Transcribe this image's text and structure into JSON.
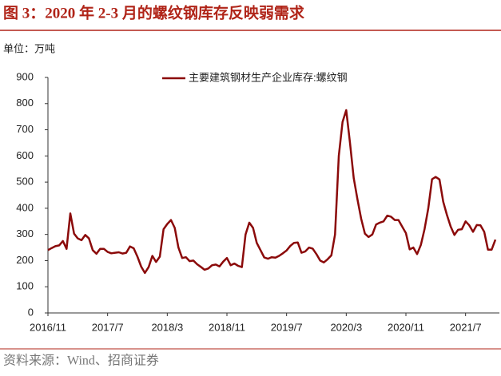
{
  "chart_data": {
    "type": "line",
    "title": "图 3：2020 年 2-3 月的螺纹钢库存反映弱需求",
    "unit": "单位：万吨",
    "source": "资料来源：Wind、招商证券",
    "categories": [
      "2016/11",
      null,
      null,
      null,
      null,
      null,
      null,
      null,
      null,
      null,
      null,
      null,
      null,
      null,
      null,
      null,
      "2017/7",
      null,
      null,
      null,
      null,
      null,
      null,
      null,
      null,
      null,
      null,
      null,
      null,
      null,
      null,
      null,
      "2018/3",
      null,
      null,
      null,
      null,
      null,
      null,
      null,
      null,
      null,
      null,
      null,
      null,
      null,
      null,
      null,
      "2018/11",
      null,
      null,
      null,
      null,
      null,
      null,
      null,
      null,
      null,
      null,
      null,
      null,
      null,
      null,
      null,
      "2019/7",
      null,
      null,
      null,
      null,
      null,
      null,
      null,
      null,
      null,
      null,
      null,
      null,
      null,
      null,
      null,
      "2020/3",
      null,
      null,
      null,
      null,
      null,
      null,
      null,
      null,
      null,
      null,
      null,
      null,
      null,
      null,
      null,
      "2020/11",
      null,
      null,
      null,
      null,
      null,
      null,
      null,
      null,
      null,
      null,
      null,
      null,
      null,
      null,
      null,
      "2021/7",
      null,
      null,
      null,
      null,
      null,
      null,
      null,
      null
    ],
    "series": [
      {
        "name": "主要建筑钢材生产企业库存:螺纹钢",
        "color": "#8b0a0a",
        "values": [
          240,
          248,
          255,
          258,
          275,
          245,
          380,
          303,
          285,
          278,
          298,
          285,
          240,
          226,
          245,
          245,
          233,
          228,
          230,
          232,
          227,
          230,
          254,
          247,
          215,
          177,
          153,
          175,
          218,
          195,
          215,
          320,
          340,
          355,
          325,
          250,
          210,
          213,
          198,
          200,
          186,
          176,
          165,
          170,
          182,
          185,
          178,
          196,
          210,
          182,
          189,
          180,
          175,
          300,
          345,
          325,
          268,
          240,
          212,
          207,
          213,
          211,
          218,
          228,
          239,
          256,
          268,
          269,
          230,
          235,
          250,
          246,
          225,
          200,
          193,
          205,
          220,
          300,
          600,
          730,
          775,
          650,
          515,
          435,
          360,
          303,
          290,
          300,
          338,
          345,
          350,
          372,
          368,
          355,
          355,
          330,
          305,
          243,
          250,
          225,
          260,
          320,
          400,
          511,
          520,
          510,
          425,
          375,
          330,
          298,
          318,
          320,
          350,
          335,
          310,
          336,
          335,
          310,
          242,
          242,
          280
        ]
      }
    ],
    "ylim": [
      0,
      900
    ],
    "yticks": [
      0,
      100,
      200,
      300,
      400,
      500,
      600,
      700,
      800,
      900
    ],
    "legend": "top",
    "grid": false
  }
}
